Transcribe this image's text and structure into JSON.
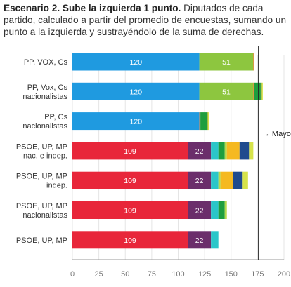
{
  "title": {
    "bold": "Escenario 2. Sube la izquierda 1 punto.",
    "text": "Diputados de cada partido, calculado a partir del promedio de encuestas, sumando un punto a la izquierda y sustrayéndolo de la suma de derechas."
  },
  "chart_data": {
    "type": "bar",
    "orientation": "horizontal",
    "stacked": true,
    "xlim": [
      0,
      200
    ],
    "xticks": [
      "0",
      "25",
      "50",
      "75",
      "100",
      "125",
      "150",
      "175",
      "200"
    ],
    "grid": true,
    "reference_line": {
      "value": 176,
      "label": "→ Mayoría"
    },
    "colors": {
      "PP": "#1f9ae0",
      "Cs": "#f07a2a",
      "VOX": "#8dc63f",
      "PSOE": "#e8263a",
      "UP": "#6b2e6b",
      "nat_green": "#1e9e3e",
      "nat_cyan": "#2bc6c9",
      "nat_yellow": "#f5b921",
      "nat_navy": "#1f4b8e",
      "nat_lightgreen": "#b5d94a",
      "nat_olive": "#6a8f2c",
      "nat_lime": "#d6e34a",
      "axis": "#999999",
      "grid": "#e5e5e5",
      "majority": "#222222"
    },
    "rows": [
      {
        "label": [
          "PP, VOX, Cs"
        ],
        "segments": [
          {
            "value": 120,
            "color": "#1f9ae0",
            "label": "120"
          },
          {
            "value": 51,
            "color": "#8dc63f",
            "label": "51"
          },
          {
            "value": 1,
            "color": "#f07a2a",
            "label": ""
          }
        ]
      },
      {
        "label": [
          "PP, Vox, Cs",
          "nacionalistas"
        ],
        "segments": [
          {
            "value": 120,
            "color": "#1f9ae0",
            "label": "120"
          },
          {
            "value": 51,
            "color": "#8dc63f",
            "label": "51"
          },
          {
            "value": 1,
            "color": "#f07a2a",
            "label": ""
          },
          {
            "value": 6,
            "color": "#1e9e3e",
            "label": ""
          },
          {
            "value": 1,
            "color": "#6a8f2c",
            "label": ""
          },
          {
            "value": 1,
            "color": "#d6e34a",
            "label": ""
          }
        ]
      },
      {
        "label": [
          "PP, Cs",
          "nacionalistas"
        ],
        "segments": [
          {
            "value": 120,
            "color": "#1f9ae0",
            "label": "120"
          },
          {
            "value": 1,
            "color": "#f07a2a",
            "label": ""
          },
          {
            "value": 6,
            "color": "#1e9e3e",
            "label": ""
          },
          {
            "value": 1,
            "color": "#6a8f2c",
            "label": ""
          },
          {
            "value": 1,
            "color": "#d6e34a",
            "label": ""
          }
        ]
      },
      {
        "label": [
          "PSOE, UP, MP",
          "nac. e indep."
        ],
        "segments": [
          {
            "value": 109,
            "color": "#e8263a",
            "label": "109"
          },
          {
            "value": 22,
            "color": "#6b2e6b",
            "label": "22"
          },
          {
            "value": 7,
            "color": "#2bc6c9",
            "label": ""
          },
          {
            "value": 6,
            "color": "#1e9e3e",
            "label": ""
          },
          {
            "value": 2,
            "color": "#b5d94a",
            "label": ""
          },
          {
            "value": 12,
            "color": "#f5b921",
            "label": ""
          },
          {
            "value": 9,
            "color": "#1f4b8e",
            "label": ""
          },
          {
            "value": 4,
            "color": "#d6e34a",
            "label": ""
          }
        ]
      },
      {
        "label": [
          "PSOE, UP, MP",
          "indep."
        ],
        "segments": [
          {
            "value": 109,
            "color": "#e8263a",
            "label": "109"
          },
          {
            "value": 22,
            "color": "#6b2e6b",
            "label": "22"
          },
          {
            "value": 7,
            "color": "#2bc6c9",
            "label": ""
          },
          {
            "value": 2,
            "color": "#b5d94a",
            "label": ""
          },
          {
            "value": 12,
            "color": "#f5b921",
            "label": ""
          },
          {
            "value": 9,
            "color": "#1f4b8e",
            "label": ""
          },
          {
            "value": 5,
            "color": "#d6e34a",
            "label": ""
          }
        ]
      },
      {
        "label": [
          "PSOE, UP, MP",
          "nacionalistas"
        ],
        "segments": [
          {
            "value": 109,
            "color": "#e8263a",
            "label": "109"
          },
          {
            "value": 22,
            "color": "#6b2e6b",
            "label": "22"
          },
          {
            "value": 7,
            "color": "#2bc6c9",
            "label": ""
          },
          {
            "value": 6,
            "color": "#1e9e3e",
            "label": ""
          },
          {
            "value": 2,
            "color": "#b5d94a",
            "label": ""
          }
        ]
      },
      {
        "label": [
          "PSOE, UP, MP"
        ],
        "segments": [
          {
            "value": 109,
            "color": "#e8263a",
            "label": "109"
          },
          {
            "value": 22,
            "color": "#6b2e6b",
            "label": "22"
          },
          {
            "value": 7,
            "color": "#2bc6c9",
            "label": ""
          }
        ]
      }
    ]
  }
}
